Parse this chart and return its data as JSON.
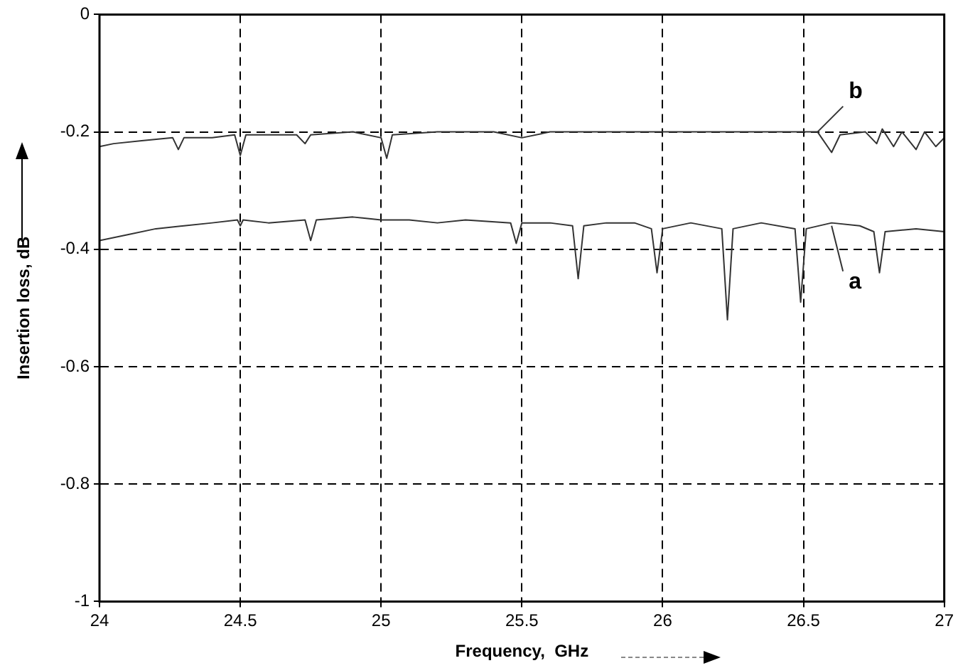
{
  "chart_data": {
    "type": "line",
    "xlabel": "Frequency,  GHz",
    "ylabel": "Insertion loss, dB",
    "xlim": [
      24,
      27
    ],
    "xticks": [
      24,
      24.5,
      25,
      25.5,
      26,
      26.5,
      27
    ],
    "ylim": [
      -1,
      0
    ],
    "yticks": [
      -1,
      -0.8,
      -0.6,
      -0.4,
      -0.2,
      0
    ],
    "grid": true,
    "legend": false,
    "marker": "none",
    "line_style": "solid",
    "annotations": [
      {
        "text": "a",
        "x": 26.6,
        "y": -0.36
      },
      {
        "text": "b",
        "x": 26.55,
        "y": -0.2
      }
    ],
    "series": [
      {
        "color": "#333333",
        "x": [
          24,
          24.1,
          24.2,
          24.3,
          24.4,
          24.49,
          24.5,
          24.51,
          24.6,
          24.73,
          24.75,
          24.77,
          24.9,
          25.0,
          25.1,
          25.2,
          25.3,
          25.46,
          25.48,
          25.5,
          25.6,
          25.68,
          25.7,
          25.72,
          25.8,
          25.9,
          25.96,
          25.98,
          26.0,
          26.1,
          26.21,
          26.23,
          26.25,
          26.35,
          26.47,
          26.49,
          26.51,
          26.6,
          26.7,
          26.75,
          26.77,
          26.79,
          26.9,
          27
        ],
        "values": [
          -0.385,
          -0.375,
          -0.365,
          -0.36,
          -0.355,
          -0.35,
          -0.36,
          -0.35,
          -0.355,
          -0.35,
          -0.385,
          -0.35,
          -0.345,
          -0.35,
          -0.35,
          -0.355,
          -0.35,
          -0.355,
          -0.39,
          -0.355,
          -0.355,
          -0.36,
          -0.45,
          -0.36,
          -0.355,
          -0.355,
          -0.365,
          -0.44,
          -0.365,
          -0.355,
          -0.365,
          -0.52,
          -0.365,
          -0.355,
          -0.365,
          -0.49,
          -0.365,
          -0.355,
          -0.36,
          -0.37,
          -0.44,
          -0.37,
          -0.365,
          -0.37
        ]
      },
      {
        "color": "#333333",
        "x": [
          24,
          24.05,
          24.15,
          24.26,
          24.28,
          24.3,
          24.4,
          24.48,
          24.5,
          24.52,
          24.6,
          24.7,
          24.73,
          24.75,
          24.9,
          25.0,
          25.02,
          25.04,
          25.2,
          25.4,
          25.5,
          25.6,
          25.8,
          26.0,
          26.2,
          26.4,
          26.55,
          26.6,
          26.63,
          26.72,
          26.76,
          26.78,
          26.82,
          26.85,
          26.9,
          26.93,
          26.97,
          27
        ],
        "values": [
          -0.225,
          -0.22,
          -0.215,
          -0.21,
          -0.23,
          -0.21,
          -0.21,
          -0.205,
          -0.24,
          -0.205,
          -0.205,
          -0.205,
          -0.22,
          -0.205,
          -0.2,
          -0.21,
          -0.245,
          -0.205,
          -0.2,
          -0.2,
          -0.21,
          -0.2,
          -0.2,
          -0.2,
          -0.2,
          -0.2,
          -0.2,
          -0.235,
          -0.205,
          -0.2,
          -0.22,
          -0.195,
          -0.225,
          -0.2,
          -0.23,
          -0.2,
          -0.225,
          -0.21
        ]
      }
    ]
  }
}
